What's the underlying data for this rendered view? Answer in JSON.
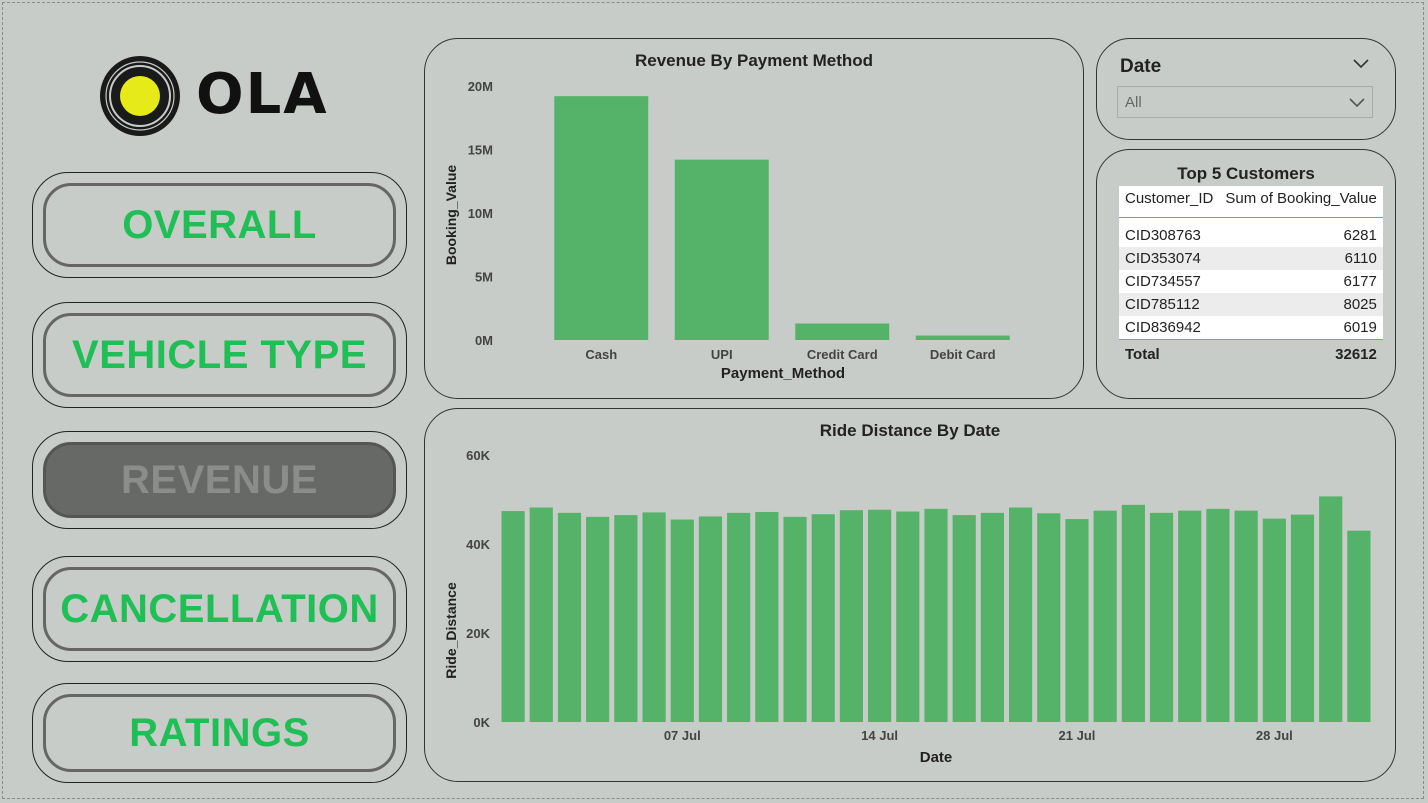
{
  "app": {
    "brand": "OLA"
  },
  "nav": [
    {
      "label": "OVERALL",
      "active": false
    },
    {
      "label": "VEHICLE TYPE",
      "active": false
    },
    {
      "label": "REVENUE",
      "active": true
    },
    {
      "label": "CANCELLATION",
      "active": false
    },
    {
      "label": "RATINGS",
      "active": false
    }
  ],
  "date_slicer": {
    "title": "Date",
    "value": "All"
  },
  "top_customers": {
    "title": "Top 5 Customers",
    "columns": [
      "Customer_ID",
      "Sum of Booking_Value"
    ],
    "rows": [
      [
        "CID308763",
        "6281"
      ],
      [
        "CID353074",
        "6110"
      ],
      [
        "CID734557",
        "6177"
      ],
      [
        "CID785112",
        "8025"
      ],
      [
        "CID836942",
        "6019"
      ]
    ],
    "total_label": "Total",
    "total_value": "32612"
  },
  "colors": {
    "accent": "#1fbf55",
    "bar": "#55b369",
    "background": "#c8ccc8"
  },
  "chart_data": [
    {
      "type": "bar",
      "title": "Revenue By Payment Method",
      "xlabel": "Payment_Method",
      "ylabel": "Booking_Value",
      "categories": [
        "Cash",
        "UPI",
        "Credit Card",
        "Debit Card"
      ],
      "values": [
        19200000,
        14200000,
        1300000,
        350000
      ],
      "ylim": [
        0,
        20000000
      ],
      "yticks": [
        "0M",
        "5M",
        "10M",
        "15M",
        "20M"
      ],
      "grid": false
    },
    {
      "type": "bar",
      "title": "Ride Distance By Date",
      "xlabel": "Date",
      "ylabel": "Ride_Distance",
      "x": [
        "01 Jul",
        "02 Jul",
        "03 Jul",
        "04 Jul",
        "05 Jul",
        "06 Jul",
        "07 Jul",
        "08 Jul",
        "09 Jul",
        "10 Jul",
        "11 Jul",
        "12 Jul",
        "13 Jul",
        "14 Jul",
        "15 Jul",
        "16 Jul",
        "17 Jul",
        "18 Jul",
        "19 Jul",
        "20 Jul",
        "21 Jul",
        "22 Jul",
        "23 Jul",
        "24 Jul",
        "25 Jul",
        "26 Jul",
        "27 Jul",
        "28 Jul",
        "29 Jul",
        "30 Jul",
        "31 Jul"
      ],
      "values": [
        47400,
        48200,
        47000,
        46100,
        46500,
        47100,
        45500,
        46200,
        47000,
        47200,
        46100,
        46700,
        47600,
        47700,
        47300,
        47900,
        46500,
        47000,
        48200,
        46900,
        45600,
        47500,
        48800,
        47000,
        47500,
        47900,
        47500,
        45700,
        46600,
        50700,
        43000
      ],
      "xtick_labels": [
        "07 Jul",
        "14 Jul",
        "21 Jul",
        "28 Jul"
      ],
      "ylim": [
        0,
        60000
      ],
      "yticks": [
        "0K",
        "20K",
        "40K",
        "60K"
      ],
      "grid": false
    }
  ]
}
